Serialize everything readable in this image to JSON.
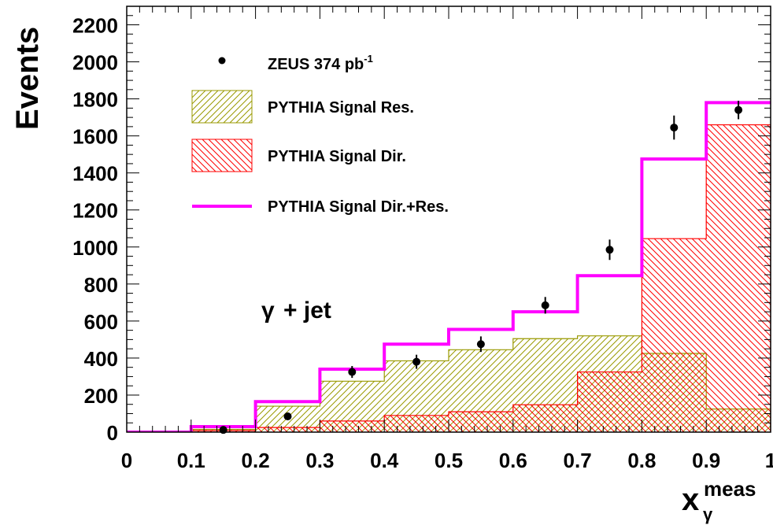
{
  "chart_data": {
    "type": "bar",
    "xlabel": "x",
    "xlabel_sup": "meas",
    "xlabel_sub": "γ",
    "ylabel": "Events",
    "xlim": [
      0,
      1
    ],
    "ylim": [
      0,
      2300
    ],
    "x_ticks": [
      "0",
      "0.1",
      "0.2",
      "0.3",
      "0.4",
      "0.5",
      "0.6",
      "0.7",
      "0.8",
      "0.9",
      "1"
    ],
    "y_ticks": [
      "0",
      "200",
      "400",
      "600",
      "800",
      "1000",
      "1200",
      "1400",
      "1600",
      "1800",
      "2000",
      "2200"
    ],
    "bin_edges": [
      0,
      0.1,
      0.2,
      0.3,
      0.4,
      0.5,
      0.6,
      0.7,
      0.8,
      0.9,
      1.0
    ],
    "annotation": {
      "gamma": "γ",
      "rest": "+ jet"
    },
    "legend": {
      "data": {
        "text": "ZEUS 374 pb",
        "sup": "-1"
      },
      "res": "PYTHIA Signal Res.",
      "dir": "PYTHIA Signal Dir.",
      "sum": "PYTHIA Signal Dir.+Res."
    },
    "series": [
      {
        "values": [
          0,
          15,
          140,
          275,
          385,
          445,
          505,
          520,
          425,
          125
        ],
        "color": "#999900",
        "style": "hatch-right"
      },
      {
        "values": [
          0,
          8,
          25,
          60,
          90,
          110,
          148,
          325,
          1045,
          1660
        ],
        "color": "#ff0000",
        "style": "hatch-left"
      },
      {
        "values": [
          0,
          30,
          165,
          340,
          475,
          555,
          650,
          845,
          1475,
          1780
        ],
        "color": "#ff00ff",
        "style": "line"
      },
      {
        "x": [
          0.15,
          0.25,
          0.35,
          0.45,
          0.55,
          0.65,
          0.75,
          0.85,
          0.95
        ],
        "values": [
          12,
          85,
          325,
          380,
          475,
          685,
          985,
          1645,
          1740
        ],
        "errors": [
          8,
          15,
          32,
          38,
          42,
          45,
          55,
          65,
          50
        ],
        "color": "#000000",
        "style": "points"
      }
    ]
  }
}
